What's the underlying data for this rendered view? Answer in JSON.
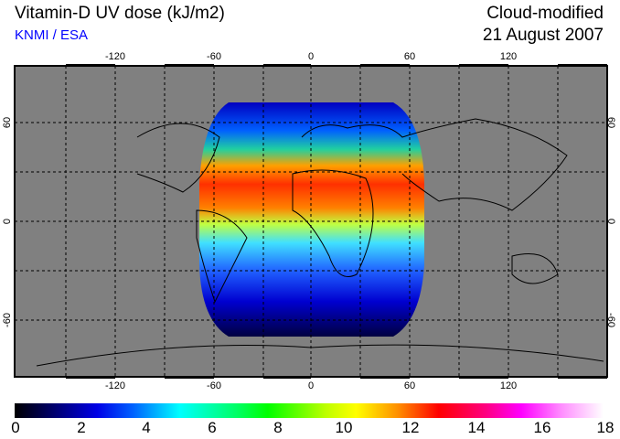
{
  "header": {
    "title": "Vitamin-D UV dose (kJ/m2)",
    "credit": "KNMI / ESA",
    "mode": "Cloud-modified",
    "date": "21 August 2007"
  },
  "map": {
    "lon_ticks": [
      "-120",
      "-60",
      "0",
      "60",
      "120"
    ],
    "lat_ticks": [
      "60",
      "0",
      "-60"
    ],
    "background_color": "#808080"
  },
  "colorbar": {
    "labels": [
      "0",
      "2",
      "4",
      "6",
      "8",
      "10",
      "12",
      "14",
      "16",
      "18"
    ],
    "min": 0,
    "max": 18
  }
}
